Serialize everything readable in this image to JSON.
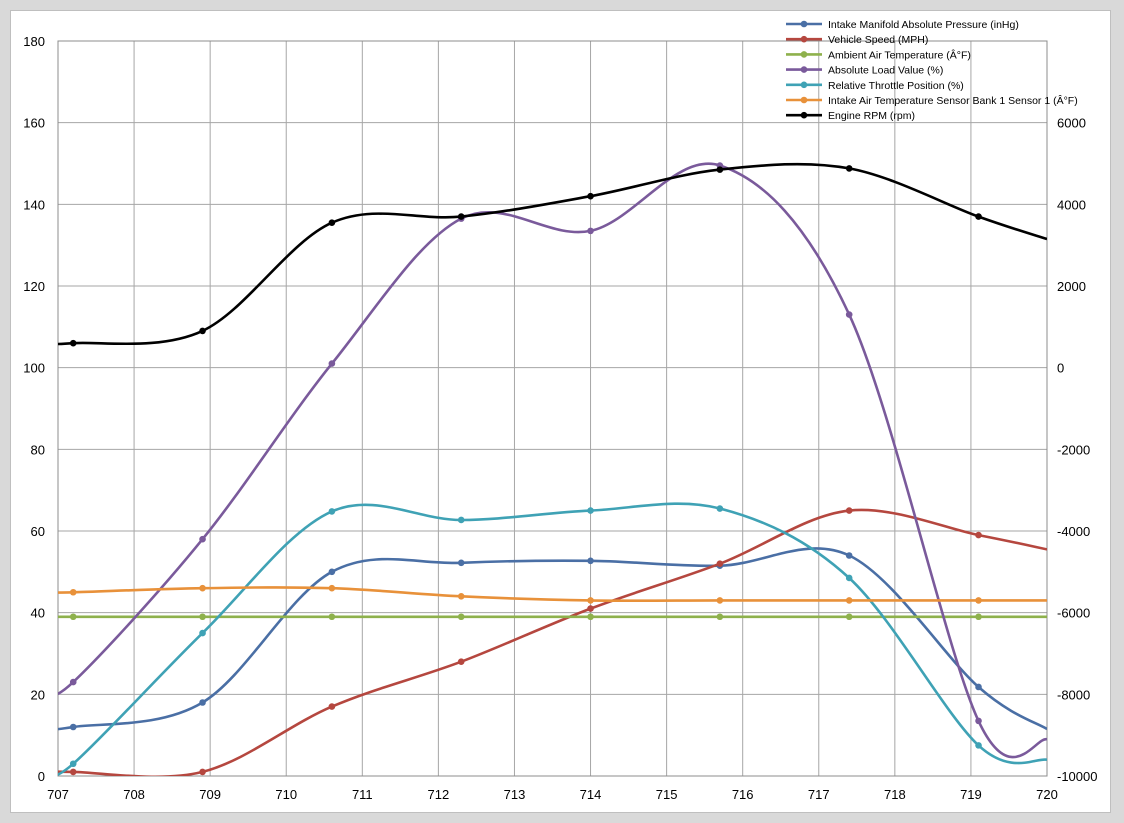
{
  "chart_data": {
    "type": "line",
    "x_range": [
      707,
      720
    ],
    "x_ticks": [
      "707",
      "708",
      "709",
      "710",
      "711",
      "712",
      "713",
      "714",
      "715",
      "716",
      "717",
      "718",
      "719",
      "720"
    ],
    "y_left_range": [
      0,
      180
    ],
    "y_left_ticks": [
      "0",
      "20",
      "40",
      "60",
      "80",
      "100",
      "120",
      "140",
      "160",
      "180"
    ],
    "y_right_range": [
      -10000,
      8000
    ],
    "y_right_ticks": [
      "-10000",
      "-8000",
      "-6000",
      "-4000",
      "-2000",
      "0",
      "2000",
      "4000",
      "6000"
    ],
    "grid": true,
    "legend_position": "top-right",
    "series": [
      {
        "name": "Intake Manifold Absolute Pressure (inHg)",
        "color": "#4a6fa5",
        "axis": "left",
        "points": [
          [
            706.8,
            11.5
          ],
          [
            707.2,
            12
          ],
          [
            708.9,
            18
          ],
          [
            710.6,
            50
          ],
          [
            712.3,
            52.2
          ],
          [
            714.0,
            52.7
          ],
          [
            715.7,
            51.5
          ],
          [
            717.4,
            54
          ],
          [
            719.1,
            21.8
          ],
          [
            720.0,
            11.5
          ]
        ]
      },
      {
        "name": "Vehicle Speed (MPH)",
        "color": "#b5473f",
        "axis": "left",
        "points": [
          [
            706.8,
            1.2
          ],
          [
            707.2,
            1
          ],
          [
            708.9,
            1
          ],
          [
            710.6,
            17
          ],
          [
            712.3,
            28
          ],
          [
            714.0,
            41
          ],
          [
            715.7,
            52
          ],
          [
            717.4,
            65
          ],
          [
            719.1,
            59
          ],
          [
            720.0,
            55.5
          ]
        ]
      },
      {
        "name": "Ambient Air Temperature (Â°F)",
        "color": "#8eb14c",
        "axis": "left",
        "points": [
          [
            706.8,
            39
          ],
          [
            707.2,
            39
          ],
          [
            708.9,
            39
          ],
          [
            710.6,
            39
          ],
          [
            712.3,
            39
          ],
          [
            714.0,
            39
          ],
          [
            715.7,
            39
          ],
          [
            717.4,
            39
          ],
          [
            719.1,
            39
          ],
          [
            720.0,
            39
          ]
        ]
      },
      {
        "name": "Absolute Load Value (%)",
        "color": "#7a5a9b",
        "axis": "left",
        "points": [
          [
            706.8,
            21
          ],
          [
            707.2,
            23
          ],
          [
            708.9,
            58
          ],
          [
            710.6,
            101
          ],
          [
            712.3,
            136.5
          ],
          [
            714.0,
            133.5
          ],
          [
            715.7,
            149.5
          ],
          [
            717.4,
            113
          ],
          [
            719.1,
            13.5
          ],
          [
            720.0,
            9
          ]
        ]
      },
      {
        "name": "Relative Throttle Position (%)",
        "color": "#3fa2b5",
        "axis": "left",
        "points": [
          [
            706.8,
            1
          ],
          [
            707.2,
            3
          ],
          [
            708.9,
            35
          ],
          [
            710.6,
            64.8
          ],
          [
            712.3,
            62.7
          ],
          [
            714.0,
            65
          ],
          [
            715.7,
            65.5
          ],
          [
            717.4,
            48.5
          ],
          [
            719.1,
            7.5
          ],
          [
            720.0,
            4
          ]
        ]
      },
      {
        "name": "Intake Air Temperature Sensor Bank 1 Sensor 1 (Â°F)",
        "color": "#e8913a",
        "axis": "left",
        "points": [
          [
            706.8,
            45
          ],
          [
            707.2,
            45
          ],
          [
            708.9,
            46
          ],
          [
            710.6,
            46
          ],
          [
            712.3,
            44
          ],
          [
            714.0,
            43
          ],
          [
            715.7,
            43
          ],
          [
            717.4,
            43
          ],
          [
            719.1,
            43
          ],
          [
            720.0,
            43
          ]
        ]
      },
      {
        "name": "Engine RPM (rpm)",
        "color": "#000000",
        "axis": "right",
        "points": [
          [
            706.8,
            600
          ],
          [
            707.2,
            600
          ],
          [
            708.9,
            900
          ],
          [
            710.6,
            3550
          ],
          [
            712.3,
            3700
          ],
          [
            714.0,
            4200
          ],
          [
            715.7,
            4850
          ],
          [
            717.4,
            4880
          ],
          [
            719.1,
            3700
          ],
          [
            720.0,
            3150
          ]
        ]
      }
    ]
  }
}
